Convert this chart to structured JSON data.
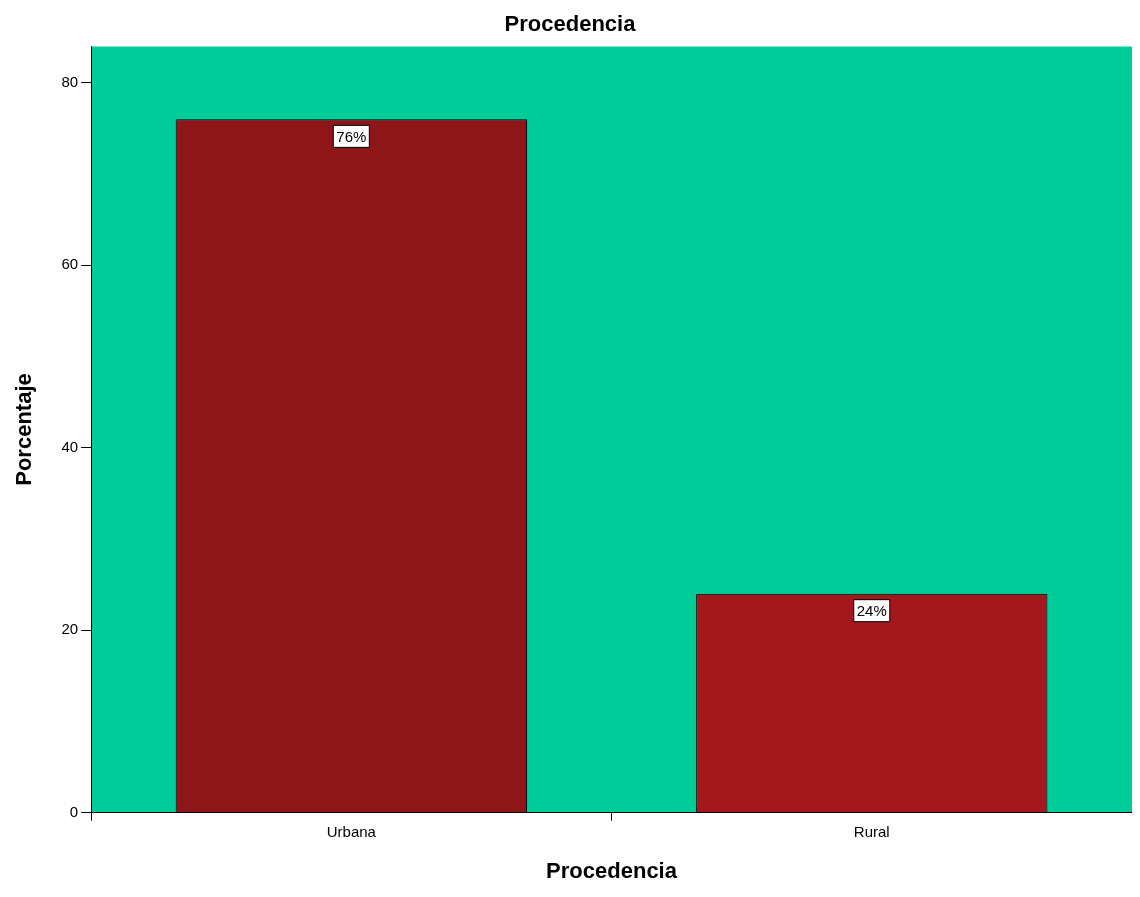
{
  "chart_data": {
    "type": "bar",
    "title": "Procedencia",
    "xlabel": "Procedencia",
    "ylabel": "Porcentaje",
    "categories": [
      "Urbana",
      "Rural"
    ],
    "values": [
      76,
      24
    ],
    "colors": [
      "#8e1518",
      "#a3181c"
    ],
    "value_labels": [
      "76%",
      "24%"
    ],
    "ylim": [
      0,
      84
    ],
    "yticks": [
      0,
      20,
      40,
      60,
      80
    ],
    "grid": false,
    "legend": false
  }
}
